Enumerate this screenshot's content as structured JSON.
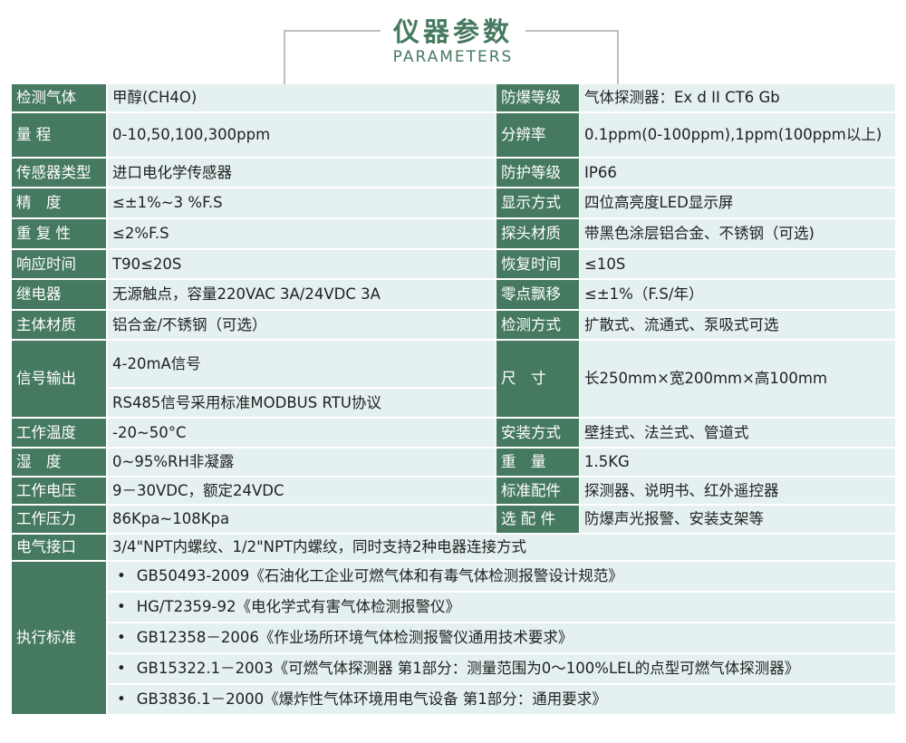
{
  "header": {
    "title": "仪器参数",
    "subtitle": "PARAMETERS"
  },
  "colors": {
    "label_bg": "#467a60",
    "cell_bg": "#e4f1f0"
  },
  "rows": [
    {
      "l1": "检测气体",
      "v1": "甲醇(CH4O)",
      "l2": "防爆等级",
      "v2": "气体探测器：Ex d II CT6 Gb"
    },
    {
      "l1": "量 程",
      "v1": "0-10,50,100,300ppm",
      "l2": "分辨率",
      "v2": "0.1ppm(0-100ppm),1ppm(100ppm以上)"
    },
    {
      "l1": "传感器类型",
      "v1": "进口电化学传感器",
      "l2": "防护等级",
      "v2": "IP66"
    },
    {
      "l1": "精　度",
      "v1": "≤±1%~3 %F.S",
      "l2": "显示方式",
      "v2": "四位高亮度LED显示屏"
    },
    {
      "l1": "重 复 性",
      "v1": "≤2%F.S",
      "l2": "探头材质",
      "v2": "带黑色涂层铝合金、不锈钢（可选)"
    },
    {
      "l1": "响应时间",
      "v1": "T90≤20S",
      "l2": "恢复时间",
      "v2": "≤10S"
    },
    {
      "l1": "继电器",
      "v1": "无源触点，容量220VAC 3A/24VDC 3A",
      "l2": "零点飘移",
      "v2": "≤±1%（F.S/年）"
    },
    {
      "l1": "主体材质",
      "v1": "铝合金/不锈钢（可选）",
      "l2": "检测方式",
      "v2": "扩散式、流通式、泵吸式可选"
    },
    {
      "l1": "信号输出",
      "v1a": "4-20mA信号",
      "v1b": "RS485信号采用标准MODBUS RTU协议",
      "l2": "尺　寸",
      "v2": "长250mm×宽200mm×高100mm"
    },
    {
      "l1": "工作温度",
      "v1": "-20~50°C",
      "l2": "安装方式",
      "v2": "壁挂式、法兰式、管道式"
    },
    {
      "l1": "湿　度",
      "v1": "0~95%RH非凝露",
      "l2": "重　量",
      "v2": "1.5KG"
    },
    {
      "l1": "工作电压",
      "v1": "9－30VDC，额定24VDC",
      "l2": "标准配件",
      "v2": "探测器、说明书、红外遥控器"
    },
    {
      "l1": "工作压力",
      "v1": "86Kpa~108Kpa",
      "l2": "选 配 件",
      "v2": "防爆声光报警、安装支架等"
    },
    {
      "l1": "电气接口",
      "v1": "3/4\"NPT内螺纹、1/2\"NPT内螺纹，同时支持2种电器连接方式"
    }
  ],
  "standards": {
    "label": "执行标准",
    "items": [
      "GB50493-2009《石油化工企业可燃气体和有毒气体检测报警设计规范》",
      "HG/T2359-92《电化学式有害气体检测报警仪》",
      "GB12358－2006《作业场所环境气体检测报警仪通用技术要求》",
      "GB15322.1－2003《可燃气体探测器 第1部分：测量范围为0～100%LEL的点型可燃气体探测器》",
      "GB3836.1－2000《爆炸性气体环境用电气设备 第1部分：通用要求》"
    ]
  }
}
